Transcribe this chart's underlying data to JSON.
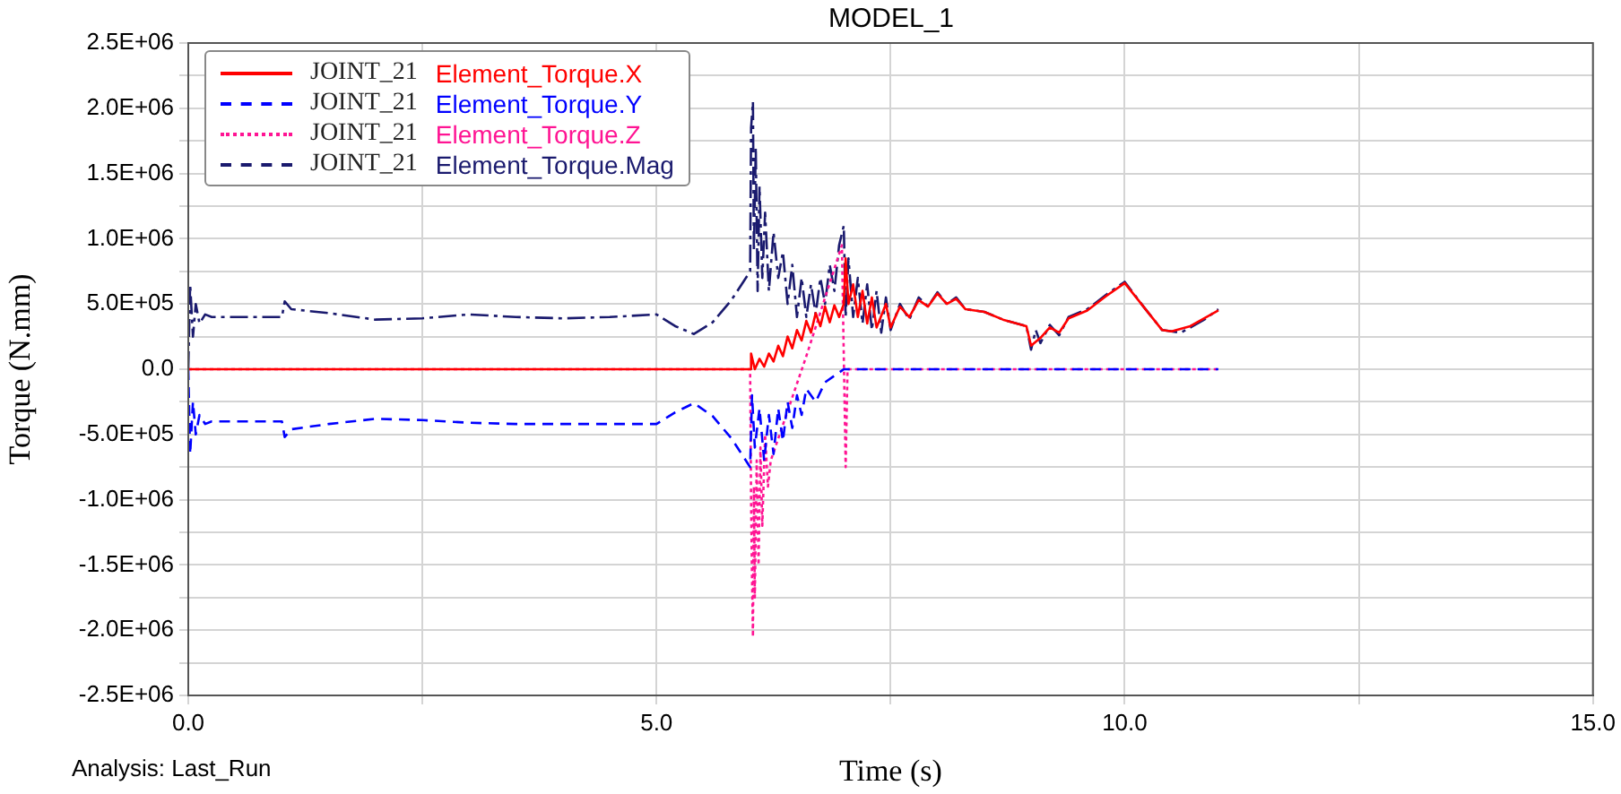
{
  "chart_data": {
    "type": "line",
    "title": "MODEL_1",
    "xlabel": "Time (s)",
    "ylabel": "Torque (N.mm)",
    "annotations": [
      "Analysis:  Last_Run"
    ],
    "xlim": [
      0,
      15
    ],
    "xticks": [
      {
        "value": 0,
        "label": "0.0"
      },
      {
        "value": 2.5,
        "label": null
      },
      {
        "value": 5,
        "label": "5.0"
      },
      {
        "value": 7.5,
        "label": null
      },
      {
        "value": 10,
        "label": "10.0"
      },
      {
        "value": 12.5,
        "label": null
      },
      {
        "value": 15,
        "label": "15.0"
      }
    ],
    "ylim": [
      -2500000,
      2500000
    ],
    "yticks": [
      {
        "value": -2500000,
        "label": "-2.5E+06"
      },
      {
        "value": -2250000,
        "label": null
      },
      {
        "value": -2000000,
        "label": "-2.0E+06"
      },
      {
        "value": -1750000,
        "label": null
      },
      {
        "value": -1500000,
        "label": "-1.5E+06"
      },
      {
        "value": -1250000,
        "label": null
      },
      {
        "value": -1000000,
        "label": "-1.0E+06"
      },
      {
        "value": -750000,
        "label": null
      },
      {
        "value": -500000,
        "label": "-5.0E+05"
      },
      {
        "value": -250000,
        "label": null
      },
      {
        "value": 0,
        "label": "0.0"
      },
      {
        "value": 250000,
        "label": null
      },
      {
        "value": 500000,
        "label": "5.0E+05"
      },
      {
        "value": 750000,
        "label": null
      },
      {
        "value": 1000000,
        "label": "1.0E+06"
      },
      {
        "value": 1250000,
        "label": null
      },
      {
        "value": 1500000,
        "label": "1.5E+06"
      },
      {
        "value": 1750000,
        "label": null
      },
      {
        "value": 2000000,
        "label": "2.0E+06"
      },
      {
        "value": 2250000,
        "label": null
      },
      {
        "value": 2500000,
        "label": "2.5E+06"
      }
    ],
    "grid": true,
    "legend": "top left",
    "marker": "none",
    "series": [
      {
        "name": "JOINT_21 Element_Torque.X",
        "color": "#ff0000",
        "line_style": "solid",
        "x": [
          0,
          6.0,
          6.01,
          6.05,
          6.1,
          6.15,
          6.2,
          6.25,
          6.3,
          6.35,
          6.4,
          6.45,
          6.5,
          6.55,
          6.6,
          6.65,
          6.7,
          6.75,
          6.8,
          6.85,
          6.9,
          6.95,
          7.0,
          7.02,
          7.05,
          7.1,
          7.15,
          7.2,
          7.25,
          7.3,
          7.35,
          7.45,
          7.5,
          7.6,
          7.7,
          7.8,
          7.9,
          8.0,
          8.1,
          8.2,
          8.3,
          8.5,
          8.7,
          8.95,
          9.0,
          9.1,
          9.2,
          9.3,
          9.4,
          9.6,
          9.8,
          10.0,
          10.2,
          10.4,
          10.5,
          10.7,
          11.0
        ],
        "values": [
          0,
          0,
          120000,
          0,
          80000,
          20000,
          120000,
          60000,
          180000,
          100000,
          250000,
          160000,
          300000,
          220000,
          370000,
          280000,
          430000,
          330000,
          480000,
          360000,
          490000,
          400000,
          500000,
          850000,
          500000,
          650000,
          400000,
          600000,
          350000,
          550000,
          320000,
          500000,
          320000,
          480000,
          400000,
          530000,
          480000,
          580000,
          500000,
          540000,
          460000,
          440000,
          380000,
          330000,
          180000,
          240000,
          320000,
          280000,
          390000,
          450000,
          560000,
          660000,
          480000,
          300000,
          290000,
          330000,
          450000
        ]
      },
      {
        "name": "JOINT_21 Element_Torque.Y",
        "color": "#0000ff",
        "line_style": "dashed",
        "x": [
          0,
          0.02,
          0.05,
          0.08,
          0.12,
          0.18,
          0.25,
          1.0,
          1.03,
          1.1,
          1.5,
          2.0,
          2.5,
          3.0,
          3.5,
          4.0,
          4.5,
          5.0,
          5.2,
          5.4,
          5.6,
          5.8,
          6.0,
          6.02,
          6.05,
          6.1,
          6.15,
          6.2,
          6.25,
          6.3,
          6.35,
          6.4,
          6.45,
          6.5,
          6.55,
          6.6,
          6.7,
          6.8,
          6.9,
          7.0,
          11.0
        ],
        "values": [
          0,
          -650000,
          -250000,
          -500000,
          -350000,
          -420000,
          -400000,
          -400000,
          -520000,
          -460000,
          -420000,
          -380000,
          -390000,
          -410000,
          -420000,
          -420000,
          -420000,
          -420000,
          -330000,
          -260000,
          -360000,
          -530000,
          -750000,
          -200000,
          -600000,
          -300000,
          -700000,
          -350000,
          -650000,
          -300000,
          -550000,
          -250000,
          -450000,
          -200000,
          -350000,
          -150000,
          -250000,
          -100000,
          -50000,
          0,
          0
        ]
      },
      {
        "name": "JOINT_21 Element_Torque.Z",
        "color": "#ff1493",
        "line_style": "dotted",
        "x": [
          0,
          6.0,
          6.01,
          6.02,
          6.03,
          6.04,
          6.05,
          6.07,
          6.09,
          6.11,
          6.13,
          6.16,
          6.19,
          6.22,
          6.6,
          6.98,
          7.02,
          7.04,
          11.0
        ],
        "values": [
          0,
          0,
          -1000000,
          -1600000,
          -2050000,
          -900000,
          -1750000,
          -700000,
          -1500000,
          -600000,
          -1200000,
          -500000,
          -900000,
          -700000,
          100000,
          950000,
          -750000,
          0,
          0
        ]
      },
      {
        "name": "JOINT_21 Element_Torque.Mag",
        "color": "#1a1a6e",
        "line_style": "dashdot",
        "x": [
          0,
          0.02,
          0.05,
          0.08,
          0.12,
          0.18,
          0.25,
          1.0,
          1.03,
          1.1,
          1.5,
          2.0,
          2.5,
          3.0,
          3.5,
          4.0,
          4.5,
          5.0,
          5.2,
          5.4,
          5.6,
          5.8,
          6.0,
          6.01,
          6.03,
          6.04,
          6.06,
          6.08,
          6.1,
          6.13,
          6.16,
          6.2,
          6.25,
          6.3,
          6.35,
          6.4,
          6.45,
          6.5,
          6.55,
          6.6,
          6.65,
          6.7,
          6.75,
          6.8,
          6.85,
          6.9,
          6.95,
          7.0,
          7.02,
          7.05,
          7.1,
          7.15,
          7.2,
          7.25,
          7.3,
          7.35,
          7.4,
          7.45,
          7.5,
          7.6,
          7.7,
          7.8,
          7.9,
          8.0,
          8.1,
          8.2,
          8.3,
          8.5,
          8.7,
          8.95,
          9.0,
          9.05,
          9.1,
          9.2,
          9.3,
          9.4,
          9.6,
          9.8,
          10.0,
          10.2,
          10.4,
          10.6,
          10.85,
          11.0
        ],
        "values": [
          0,
          650000,
          250000,
          500000,
          350000,
          420000,
          400000,
          400000,
          520000,
          460000,
          430000,
          380000,
          390000,
          420000,
          400000,
          390000,
          400000,
          420000,
          330000,
          270000,
          360000,
          530000,
          750000,
          1850000,
          2050000,
          900000,
          1700000,
          600000,
          1400000,
          700000,
          1200000,
          600000,
          1050000,
          700000,
          900000,
          500000,
          800000,
          400000,
          700000,
          400000,
          650000,
          420000,
          700000,
          500000,
          800000,
          600000,
          950000,
          1100000,
          400000,
          850000,
          400000,
          700000,
          350000,
          650000,
          300000,
          600000,
          280000,
          550000,
          300000,
          500000,
          380000,
          550000,
          480000,
          590000,
          500000,
          550000,
          460000,
          440000,
          380000,
          330000,
          150000,
          300000,
          200000,
          340000,
          260000,
          400000,
          460000,
          570000,
          670000,
          480000,
          300000,
          280000,
          380000,
          460000
        ]
      }
    ]
  }
}
